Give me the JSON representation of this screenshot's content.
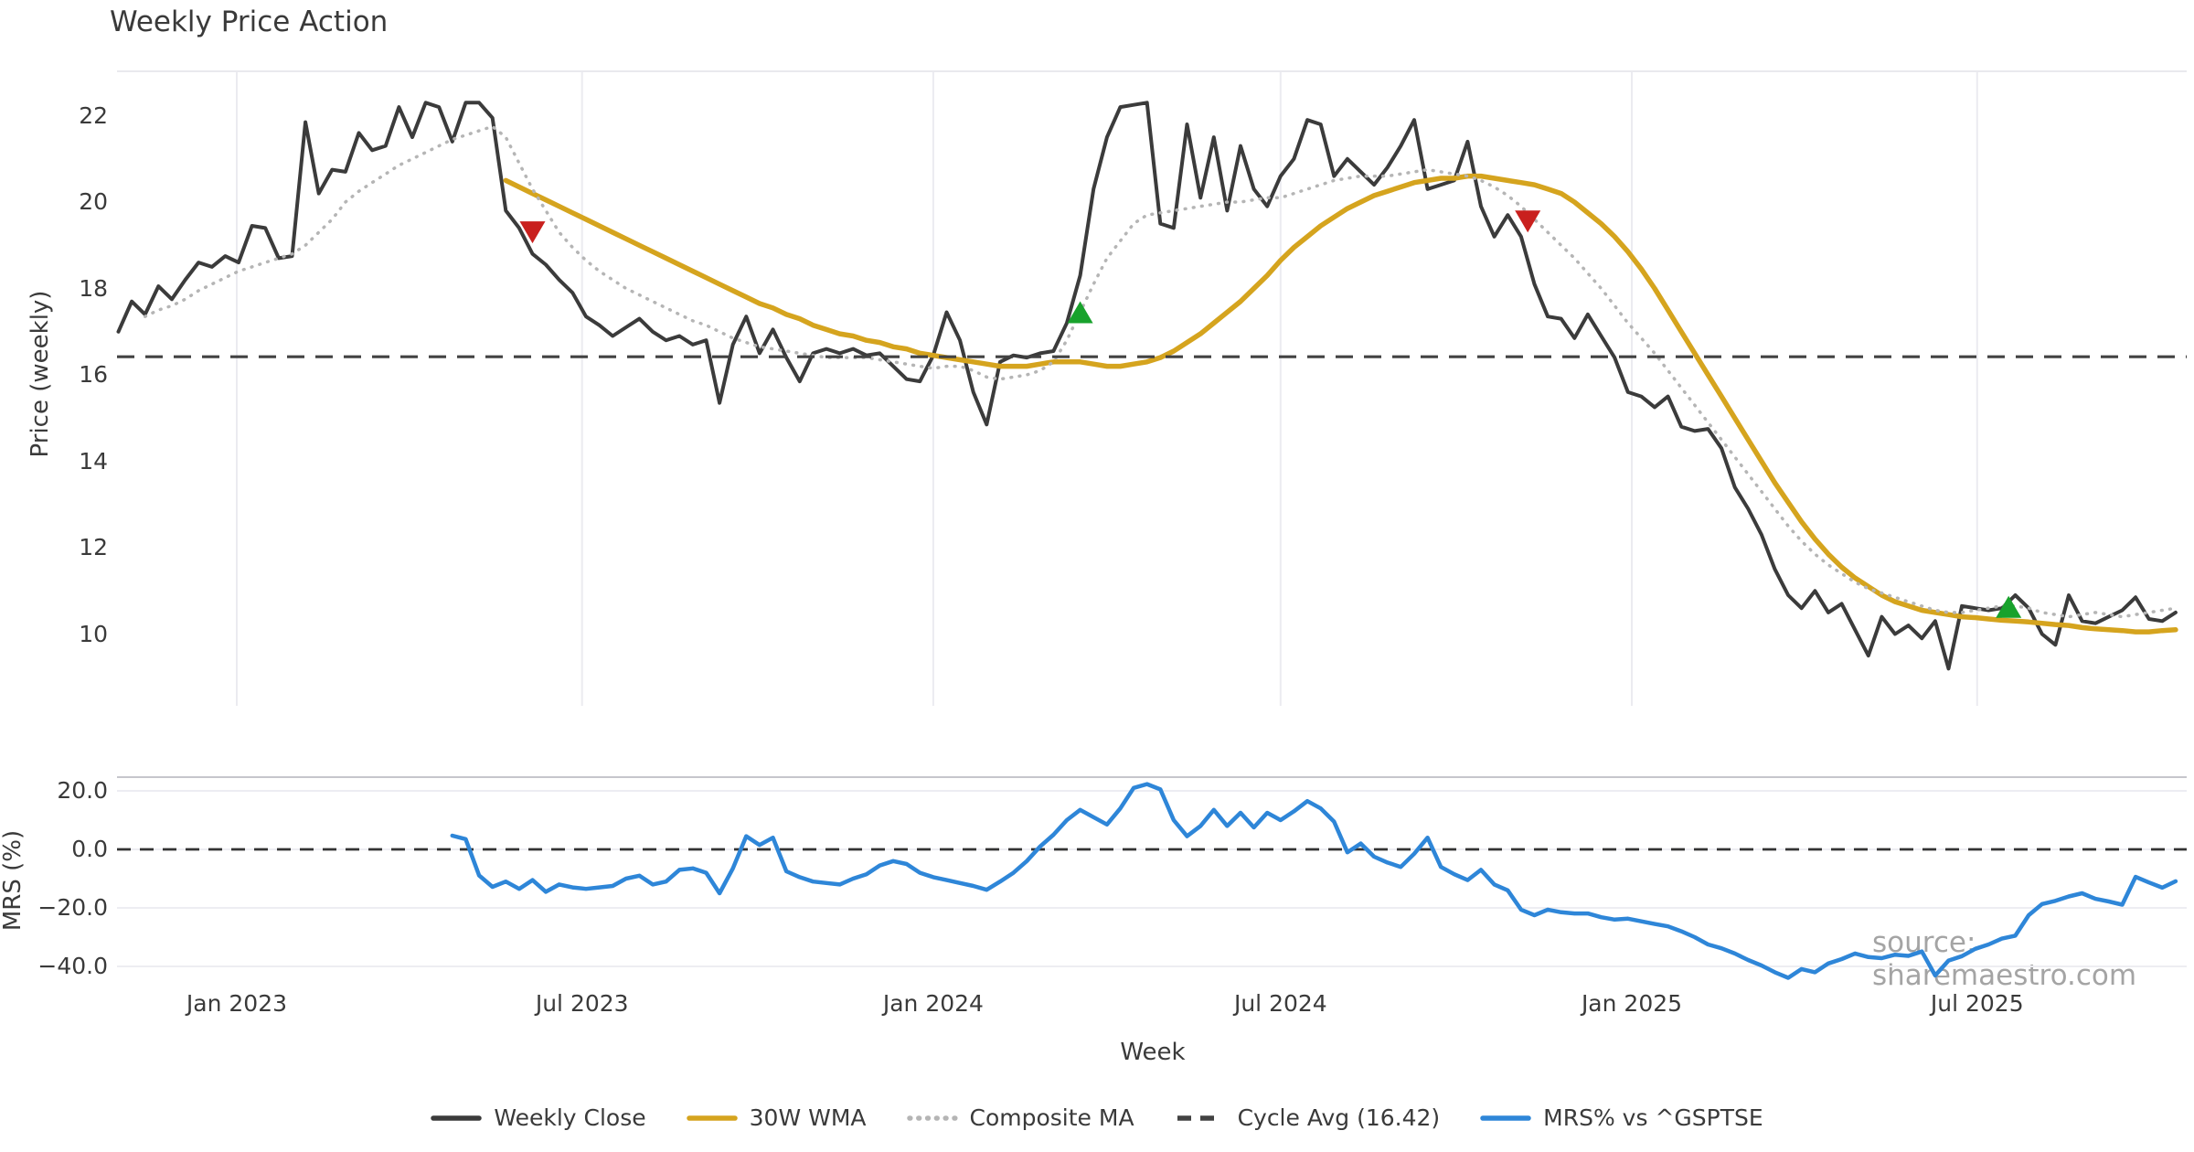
{
  "title": "Weekly Price Action",
  "watermark": "source: sharemaestro.com",
  "xlabel": "Week",
  "price_panel": {
    "ylabel": "Price (weekly)",
    "yticks": [
      "22",
      "20",
      "18",
      "16",
      "14",
      "12",
      "10"
    ],
    "ytick_values": [
      22,
      20,
      18,
      16,
      14,
      12,
      10
    ]
  },
  "mrs_panel": {
    "ylabel": "MRS (%)",
    "yticks": [
      "20.0",
      "0.0",
      "−20.0",
      "−40.0"
    ],
    "ytick_values": [
      20,
      0,
      -20,
      -40
    ]
  },
  "legend": [
    {
      "label": "Weekly Close",
      "color": "#3b3b3b",
      "style": "solid"
    },
    {
      "label": "30W WMA",
      "color": "#D5A41E",
      "style": "solid"
    },
    {
      "label": "Composite MA",
      "color": "#b5b5b5",
      "style": "dotted"
    },
    {
      "label": "Cycle Avg (16.42)",
      "color": "#424242",
      "style": "dashed"
    },
    {
      "label": "MRS% vs ^GSPTSE",
      "color": "#2E86D8",
      "style": "solid"
    }
  ],
  "chart_data": {
    "type": "line",
    "title": "Weekly Price Action",
    "xlabel": "Week",
    "x_axis": {
      "start_date": "2022-10-31",
      "step": "1 week",
      "n_points": 155,
      "ticks": [
        {
          "label": "Jan 2023",
          "week_index": 8.86
        },
        {
          "label": "Jul 2023",
          "week_index": 34.71
        },
        {
          "label": "Jan 2024",
          "week_index": 61.0
        },
        {
          "label": "Jul 2024",
          "week_index": 87.0
        },
        {
          "label": "Jan 2025",
          "week_index": 113.29
        },
        {
          "label": "Jul 2025",
          "week_index": 139.14
        }
      ]
    },
    "panels": [
      {
        "name": "price",
        "ylabel": "Price (weekly)",
        "ylim": [
          8.3,
          23.0
        ],
        "yticks": [
          22,
          20,
          18,
          16,
          14,
          12,
          10
        ],
        "grid": "vertical",
        "cycle_avg": 16.42,
        "series": [
          {
            "name": "Weekly Close",
            "color": "#3b3b3b",
            "style": "solid",
            "width": 4,
            "values": [
              17.0,
              17.7,
              17.4,
              18.05,
              17.75,
              18.2,
              18.6,
              18.5,
              18.75,
              18.6,
              19.45,
              19.4,
              18.7,
              18.75,
              21.85,
              20.2,
              20.75,
              20.7,
              21.6,
              21.2,
              21.3,
              22.2,
              21.5,
              22.3,
              22.2,
              21.4,
              22.3,
              22.3,
              21.95,
              19.8,
              19.4,
              18.8,
              18.55,
              18.2,
              17.9,
              17.35,
              17.15,
              16.9,
              17.1,
              17.3,
              17.0,
              16.8,
              16.9,
              16.7,
              16.8,
              15.35,
              16.7,
              17.35,
              16.5,
              17.05,
              16.4,
              15.85,
              16.5,
              16.6,
              16.5,
              16.6,
              16.45,
              16.5,
              16.2,
              15.9,
              15.85,
              16.45,
              17.45,
              16.8,
              15.6,
              14.85,
              16.3,
              16.45,
              16.4,
              16.5,
              16.55,
              17.2,
              18.3,
              20.3,
              21.5,
              22.2,
              22.25,
              22.3,
              19.5,
              19.4,
              21.8,
              20.1,
              21.5,
              19.8,
              21.3,
              20.3,
              19.9,
              20.6,
              21.0,
              21.9,
              21.8,
              20.6,
              21.0,
              20.7,
              20.4,
              20.8,
              21.3,
              21.9,
              20.3,
              20.4,
              20.5,
              21.4,
              19.9,
              19.2,
              19.7,
              19.2,
              18.1,
              17.35,
              17.3,
              16.85,
              17.4,
              16.9,
              16.4,
              15.6,
              15.5,
              15.25,
              15.5,
              14.8,
              14.7,
              14.75,
              14.3,
              13.4,
              12.9,
              12.3,
              11.5,
              10.9,
              10.6,
              11.0,
              10.5,
              10.7,
              10.1,
              9.5,
              10.4,
              10.0,
              10.2,
              9.9,
              10.3,
              9.2,
              10.65,
              10.6,
              10.55,
              10.6,
              10.9,
              10.6,
              10.0,
              9.75,
              10.9,
              10.3,
              10.25,
              10.4,
              10.55,
              10.85,
              10.35,
              10.3,
              10.5
            ]
          },
          {
            "name": "30W WMA",
            "color": "#D5A41E",
            "style": "solid",
            "width": 5.5,
            "values": [
              null,
              null,
              null,
              null,
              null,
              null,
              null,
              null,
              null,
              null,
              null,
              null,
              null,
              null,
              null,
              null,
              null,
              null,
              null,
              null,
              null,
              null,
              null,
              null,
              null,
              null,
              null,
              null,
              null,
              20.5,
              20.35,
              20.2,
              20.05,
              19.9,
              19.75,
              19.6,
              19.45,
              19.3,
              19.15,
              19.0,
              18.85,
              18.7,
              18.55,
              18.4,
              18.25,
              18.1,
              17.95,
              17.8,
              17.65,
              17.55,
              17.4,
              17.3,
              17.15,
              17.05,
              16.95,
              16.9,
              16.8,
              16.75,
              16.65,
              16.6,
              16.5,
              16.45,
              16.4,
              16.35,
              16.3,
              16.25,
              16.2,
              16.2,
              16.2,
              16.25,
              16.3,
              16.3,
              16.3,
              16.25,
              16.2,
              16.2,
              16.25,
              16.3,
              16.4,
              16.55,
              16.75,
              16.95,
              17.2,
              17.45,
              17.7,
              18.0,
              18.3,
              18.65,
              18.95,
              19.2,
              19.45,
              19.65,
              19.85,
              20.0,
              20.15,
              20.25,
              20.35,
              20.45,
              20.5,
              20.55,
              20.55,
              20.6,
              20.6,
              20.55,
              20.5,
              20.45,
              20.4,
              20.3,
              20.2,
              20.0,
              19.75,
              19.5,
              19.2,
              18.85,
              18.45,
              18.0,
              17.5,
              17.0,
              16.5,
              16.0,
              15.5,
              15.0,
              14.5,
              14.0,
              13.5,
              13.05,
              12.6,
              12.2,
              11.85,
              11.55,
              11.3,
              11.1,
              10.9,
              10.75,
              10.65,
              10.55,
              10.5,
              10.45,
              10.4,
              10.38,
              10.35,
              10.32,
              10.3,
              10.28,
              10.25,
              10.22,
              10.2,
              10.15,
              10.12,
              10.1,
              10.08,
              10.05,
              10.05,
              10.08,
              10.1
            ]
          },
          {
            "name": "Composite MA",
            "color": "#b5b5b5",
            "style": "dotted",
            "width": 3.5,
            "values": [
              null,
              null,
              17.35,
              17.5,
              17.6,
              17.75,
              17.95,
              18.1,
              18.25,
              18.4,
              18.5,
              18.6,
              18.7,
              18.8,
              19.0,
              19.3,
              19.6,
              20.0,
              20.25,
              20.45,
              20.65,
              20.85,
              21.0,
              21.15,
              21.3,
              21.45,
              21.55,
              21.65,
              21.75,
              21.5,
              20.9,
              20.3,
              19.8,
              19.3,
              18.95,
              18.65,
              18.4,
              18.2,
              18.0,
              17.85,
              17.7,
              17.55,
              17.4,
              17.25,
              17.15,
              17.0,
              16.85,
              16.75,
              16.65,
              16.6,
              16.55,
              16.5,
              16.45,
              16.4,
              16.4,
              16.4,
              16.4,
              16.35,
              16.3,
              16.25,
              16.2,
              16.15,
              16.2,
              16.2,
              16.1,
              15.95,
              15.9,
              15.95,
              16.0,
              16.1,
              16.3,
              16.8,
              17.45,
              18.1,
              18.7,
              19.1,
              19.5,
              19.7,
              19.75,
              19.8,
              19.85,
              19.9,
              19.95,
              20.0,
              20.0,
              20.05,
              20.1,
              20.1,
              20.2,
              20.3,
              20.4,
              20.5,
              20.55,
              20.6,
              20.6,
              20.6,
              20.65,
              20.7,
              20.75,
              20.7,
              20.65,
              20.6,
              20.5,
              20.35,
              20.15,
              19.9,
              19.6,
              19.3,
              19.0,
              18.7,
              18.35,
              18.0,
              17.6,
              17.2,
              16.85,
              16.5,
              16.1,
              15.7,
              15.3,
              14.9,
              14.5,
              14.1,
              13.7,
              13.3,
              12.9,
              12.5,
              12.15,
              11.85,
              11.6,
              11.4,
              11.2,
              11.05,
              10.95,
              10.85,
              10.75,
              10.65,
              10.55,
              10.5,
              10.5,
              10.55,
              10.6,
              10.65,
              10.65,
              10.6,
              10.5,
              10.45,
              10.4,
              10.45,
              10.5,
              10.45,
              10.4,
              10.45,
              10.5,
              10.55,
              10.6
            ]
          },
          {
            "name": "Cycle Avg",
            "color": "#424242",
            "style": "dashed",
            "width": 3.2,
            "constant": 16.42
          }
        ],
        "markers": [
          {
            "type": "sell",
            "shape": "triangle-down",
            "color": "#C9201E",
            "week_index": 31.0,
            "value": 19.3
          },
          {
            "type": "buy",
            "shape": "triangle-up",
            "color": "#18A22C",
            "week_index": 72.0,
            "value": 17.45
          },
          {
            "type": "sell",
            "shape": "triangle-down",
            "color": "#C9201E",
            "week_index": 105.5,
            "value": 19.55
          },
          {
            "type": "buy",
            "shape": "triangle-up",
            "color": "#18A22C",
            "week_index": 141.5,
            "value": 10.63
          }
        ]
      },
      {
        "name": "mrs",
        "ylabel": "MRS (%)",
        "ylim": [
          -45.6,
          24.7
        ],
        "yticks": [
          20,
          0,
          -20,
          -40
        ],
        "grid": "horizontal",
        "zero_line": 0,
        "series": [
          {
            "name": "MRS% vs ^GSPTSE",
            "color": "#2E86D8",
            "style": "solid",
            "width": 4.5,
            "values": [
              null,
              null,
              null,
              null,
              null,
              null,
              null,
              null,
              null,
              null,
              null,
              null,
              null,
              null,
              null,
              null,
              null,
              null,
              null,
              null,
              null,
              null,
              null,
              null,
              null,
              4.7,
              3.5,
              -8.9,
              -12.8,
              -11.0,
              -13.5,
              -10.5,
              -14.5,
              -12.0,
              -13.0,
              -13.5,
              -13.0,
              -12.5,
              -10.0,
              -9.0,
              -12.0,
              -11.0,
              -7.0,
              -6.5,
              -8.0,
              -15.0,
              -6.5,
              4.5,
              1.5,
              4.0,
              -7.5,
              -9.5,
              -11.0,
              -11.5,
              -12.0,
              -10.0,
              -8.5,
              -5.5,
              -4.0,
              -5.0,
              -8.0,
              -9.5,
              -10.5,
              -11.5,
              -12.5,
              -13.8,
              -11.0,
              -8.0,
              -4.0,
              1.0,
              5.0,
              10.0,
              13.5,
              11.0,
              8.5,
              14.0,
              21.0,
              22.3,
              20.5,
              10.0,
              4.5,
              8.0,
              13.5,
              8.0,
              12.5,
              7.5,
              12.5,
              10.0,
              13.0,
              16.5,
              14.0,
              9.5,
              -1.0,
              2.0,
              -2.5,
              -4.5,
              -6.0,
              -1.5,
              4.0,
              -6.0,
              -8.5,
              -10.5,
              -7.0,
              -12.0,
              -14.0,
              -20.6,
              -22.5,
              -20.6,
              -21.5,
              -21.9,
              -21.9,
              -23.2,
              -24.0,
              -23.7,
              -24.6,
              -25.5,
              -26.3,
              -28.0,
              -30.0,
              -32.5,
              -33.8,
              -35.6,
              -37.8,
              -39.7,
              -42.0,
              -43.9,
              -40.9,
              -42.0,
              -39.0,
              -37.5,
              -35.6,
              -36.8,
              -37.2,
              -36.0,
              -36.4,
              -34.9,
              -43.1,
              -38.0,
              -36.5,
              -34.0,
              -32.5,
              -30.5,
              -29.5,
              -22.5,
              -18.7,
              -17.6,
              -16.1,
              -15.0,
              -16.9,
              -17.8,
              -18.9,
              -9.4,
              -11.3,
              -13.1,
              -10.9
            ]
          }
        ]
      }
    ]
  }
}
